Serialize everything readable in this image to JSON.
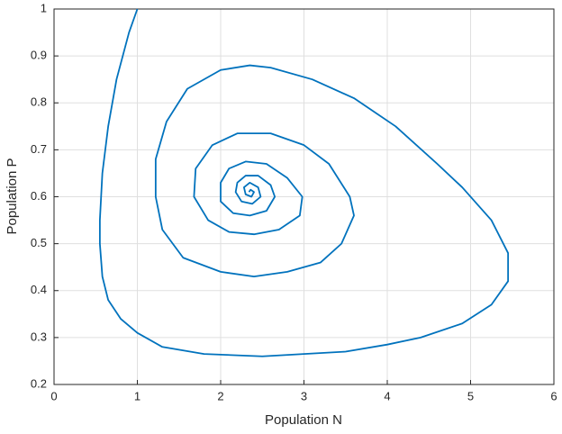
{
  "chart_data": {
    "type": "line",
    "x_label": "Population N",
    "y_label": "Population P",
    "x": [
      1,
      0.9,
      0.75,
      0.65,
      0.58,
      0.55,
      0.55,
      0.58,
      0.65,
      0.8,
      1.0,
      1.3,
      1.8,
      2.5,
      3.0,
      3.5,
      4.0,
      4.4,
      4.9,
      5.25,
      5.45,
      5.45,
      5.25,
      4.9,
      4.6,
      4.1,
      3.6,
      3.1,
      2.6,
      2.35,
      2.0,
      1.6,
      1.35,
      1.22,
      1.22,
      1.3,
      1.55,
      2.0,
      2.4,
      2.8,
      3.2,
      3.45,
      3.6,
      3.55,
      3.3,
      3.0,
      2.6,
      2.2,
      1.9,
      1.7,
      1.68,
      1.85,
      2.1,
      2.4,
      2.7,
      2.95,
      2.98,
      2.8,
      2.55,
      2.3,
      2.1,
      2.0,
      2.0,
      2.15,
      2.35,
      2.55,
      2.65,
      2.6,
      2.45,
      2.3,
      2.2,
      2.18,
      2.25,
      2.38,
      2.48,
      2.45,
      2.35,
      2.28,
      2.3,
      2.37,
      2.4,
      2.36,
      2.34
    ],
    "values": [
      1,
      0.95,
      0.85,
      0.75,
      0.65,
      0.55,
      0.5,
      0.43,
      0.38,
      0.34,
      0.31,
      0.28,
      0.265,
      0.26,
      0.265,
      0.27,
      0.285,
      0.3,
      0.33,
      0.37,
      0.42,
      0.48,
      0.55,
      0.62,
      0.67,
      0.75,
      0.81,
      0.85,
      0.875,
      0.88,
      0.87,
      0.83,
      0.76,
      0.68,
      0.6,
      0.53,
      0.47,
      0.44,
      0.43,
      0.44,
      0.46,
      0.5,
      0.56,
      0.6,
      0.67,
      0.71,
      0.735,
      0.735,
      0.71,
      0.66,
      0.6,
      0.55,
      0.525,
      0.52,
      0.53,
      0.56,
      0.6,
      0.64,
      0.67,
      0.675,
      0.66,
      0.63,
      0.59,
      0.565,
      0.56,
      0.57,
      0.6,
      0.625,
      0.645,
      0.645,
      0.63,
      0.61,
      0.59,
      0.585,
      0.6,
      0.62,
      0.63,
      0.62,
      0.605,
      0.6,
      0.61,
      0.615,
      0.61
    ],
    "color": "#0072bd",
    "xlim": [
      0,
      6
    ],
    "ylim": [
      0.2,
      1
    ],
    "xticks": [
      0,
      1,
      2,
      3,
      4,
      5,
      6
    ],
    "yticks": [
      0.2,
      0.3,
      0.4,
      0.5,
      0.6,
      0.7,
      0.8,
      0.9,
      1
    ],
    "grid": true
  }
}
